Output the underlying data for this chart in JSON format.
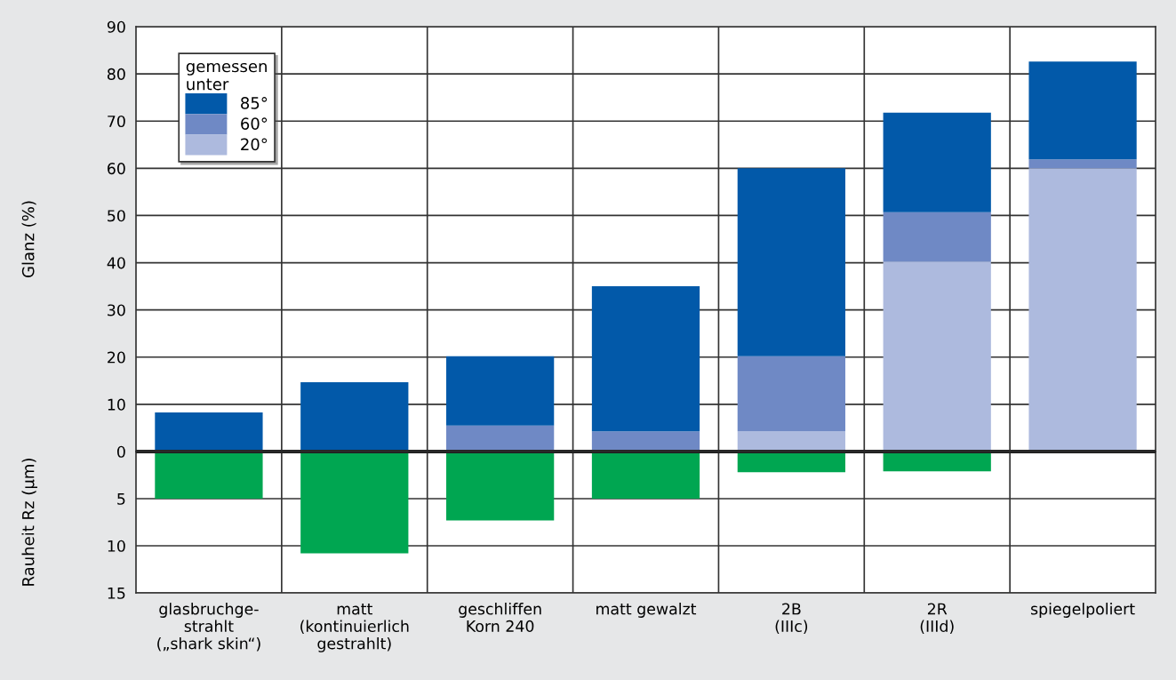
{
  "chart_data": [
    {
      "type": "bar",
      "stacked": true,
      "ylabel": "Glanz (%)",
      "legend_title": "gemessen\nunter",
      "legend": "top left",
      "grid": true,
      "tick_labels": "y",
      "ylim": [
        0,
        90
      ],
      "yticks": [
        0,
        10,
        20,
        30,
        40,
        50,
        60,
        70,
        80,
        90
      ],
      "series": [
        {
          "name": "20°",
          "color": "#adbade",
          "values": [
            null,
            null,
            null,
            null,
            4.3,
            40.2,
            60.0
          ]
        },
        {
          "name": "60°",
          "color": "#6f89c5",
          "values": [
            null,
            null,
            5.5,
            4.3,
            15.9,
            10.5,
            1.9
          ]
        },
        {
          "name": "85°",
          "color": "#0259a9",
          "values": [
            8.3,
            14.7,
            14.7,
            30.7,
            39.8,
            21.1,
            20.7
          ]
        }
      ]
    },
    {
      "type": "bar",
      "ylabel": "Rauheit Rz (µm)",
      "grid": true,
      "color": "#00a651",
      "categories": [
        "glasbruchge-\nstrahlt\n(„shark skin“)",
        "matt\n(kontinuierlich\ngestrahlt)",
        "geschliffen\nKorn 240",
        "matt gewalzt",
        "2B\n(IIIc)",
        "2R\n(IIId)",
        "spiegelpoliert"
      ],
      "ylim": [
        15,
        0
      ],
      "yticks": [
        {
          "value": 0,
          "label": null
        },
        5,
        10,
        15
      ],
      "values": [
        5.0,
        10.8,
        7.3,
        5.0,
        2.2,
        2.1,
        null
      ]
    }
  ]
}
